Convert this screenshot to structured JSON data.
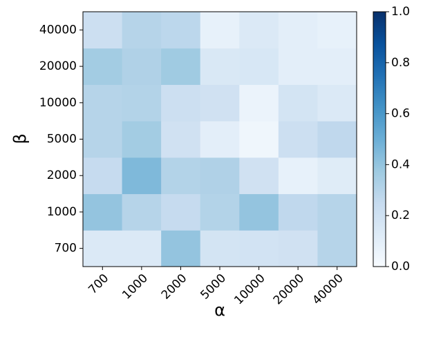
{
  "chart_data": {
    "type": "heatmap",
    "x_label": "α",
    "y_label": "β",
    "x_categories": [
      "700",
      "1000",
      "2000",
      "5000",
      "10000",
      "20000",
      "40000"
    ],
    "y_categories": [
      "700",
      "1000",
      "2000",
      "5000",
      "10000",
      "20000",
      "40000"
    ],
    "values": [
      [
        0.14,
        0.14,
        0.4,
        0.18,
        0.19,
        0.2,
        0.3
      ],
      [
        0.4,
        0.3,
        0.25,
        0.31,
        0.4,
        0.27,
        0.3
      ],
      [
        0.25,
        0.45,
        0.31,
        0.32,
        0.2,
        0.08,
        0.12
      ],
      [
        0.3,
        0.36,
        0.2,
        0.1,
        0.04,
        0.22,
        0.27
      ],
      [
        0.3,
        0.31,
        0.22,
        0.2,
        0.06,
        0.18,
        0.14
      ],
      [
        0.36,
        0.32,
        0.37,
        0.15,
        0.16,
        0.1,
        0.1
      ],
      [
        0.22,
        0.3,
        0.28,
        0.08,
        0.14,
        0.1,
        0.08
      ]
    ],
    "colormap": "Blues",
    "zlim": [
      0,
      1
    ],
    "zticks": [
      {
        "value": 0,
        "label": "0.0"
      },
      {
        "value": 0.2,
        "label": "0.2"
      },
      {
        "value": 0.4,
        "label": "0.4"
      },
      {
        "value": 0.6,
        "label": "0.6"
      },
      {
        "value": 0.8,
        "label": "0.8"
      },
      {
        "value": 1,
        "label": "1.0"
      }
    ]
  }
}
